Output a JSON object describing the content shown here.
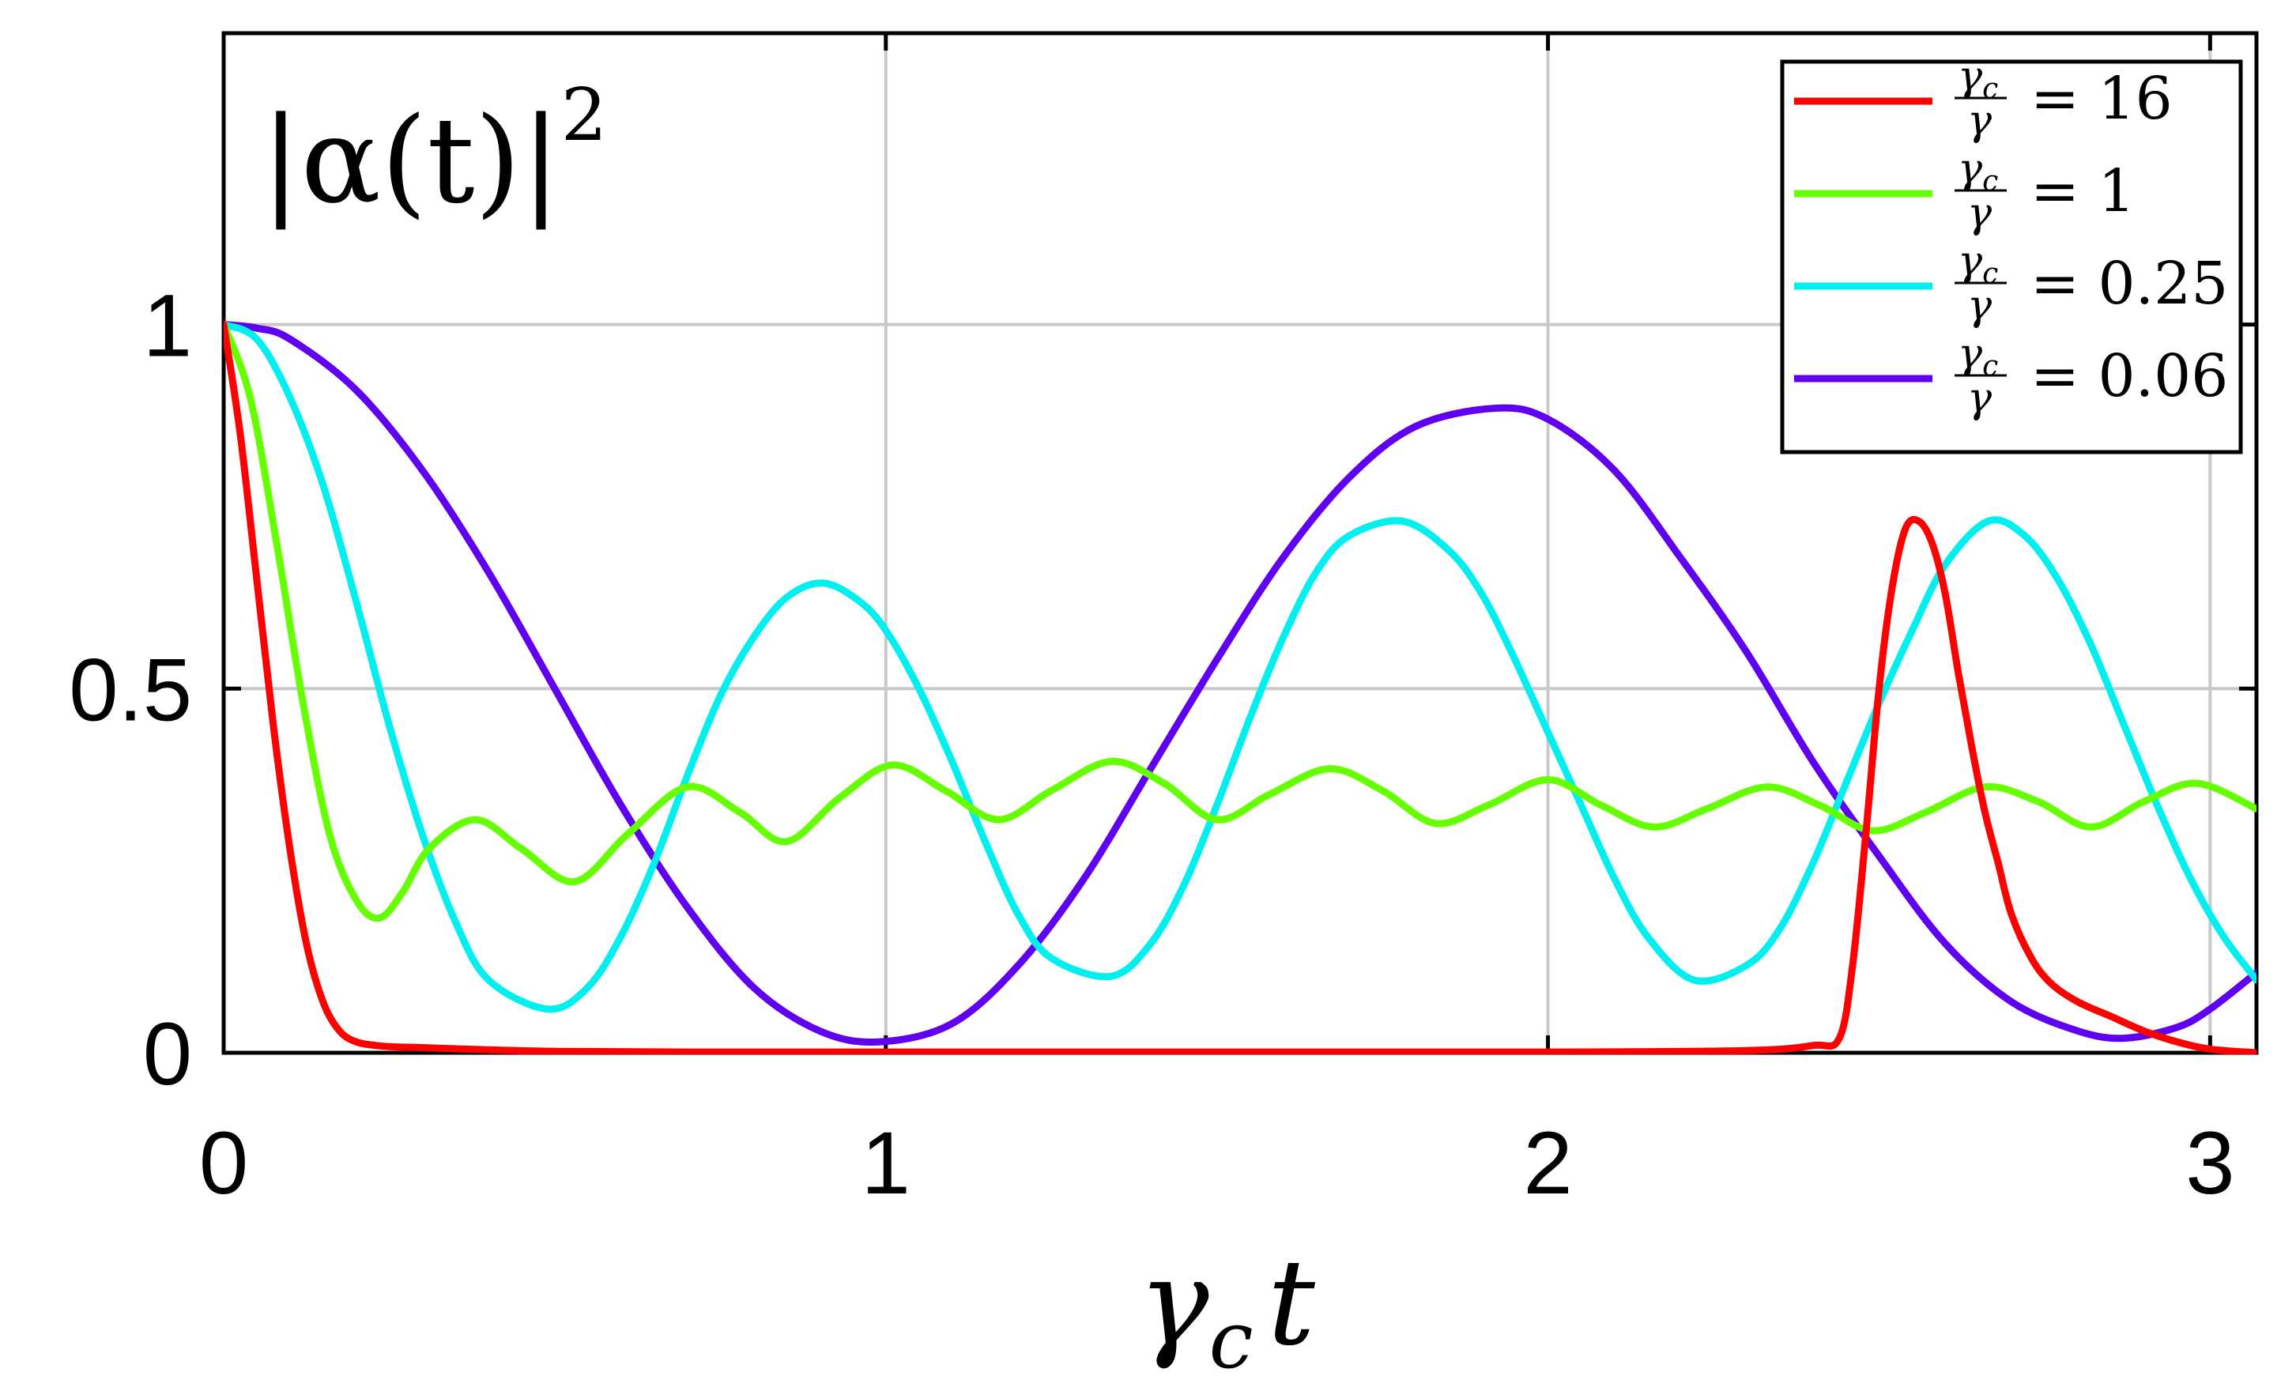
{
  "chart_data": {
    "type": "line",
    "title": "",
    "y_annotation": {
      "base": "|α(t)|",
      "exponent": "2"
    },
    "xlabel": {
      "symbol": "γ",
      "subscript": "c",
      "suffix": "t"
    },
    "ylabel": "",
    "xlim": [
      0,
      3.07
    ],
    "ylim": [
      0,
      1.4
    ],
    "xticks": [
      0,
      1,
      2,
      3
    ],
    "xtick_labels": [
      "0",
      "1",
      "2",
      "3"
    ],
    "yticks": [
      0,
      0.5,
      1
    ],
    "ytick_labels": [
      "0",
      "0.5",
      "1"
    ],
    "grid": true,
    "legend_position": "top-right",
    "series": [
      {
        "name": "γc/γ = 16",
        "legend": {
          "num": "γ",
          "num_sub": "c",
          "den": "γ",
          "rhs": "= 16"
        },
        "color": "#ff0000",
        "x": [
          0,
          0.025,
          0.05,
          0.075,
          0.1,
          0.125,
          0.15,
          0.175,
          0.2,
          0.23,
          0.26,
          0.3,
          0.4,
          0.5,
          0.7,
          1.0,
          1.5,
          2.0,
          2.3,
          2.4,
          2.44,
          2.46,
          2.48,
          2.5,
          2.52,
          2.54,
          2.56,
          2.58,
          2.6,
          2.62,
          2.64,
          2.66,
          2.68,
          2.7,
          2.73,
          2.76,
          2.8,
          2.85,
          2.9,
          2.95,
          3.0,
          3.07
        ],
        "y": [
          1.0,
          0.85,
          0.65,
          0.45,
          0.28,
          0.15,
          0.07,
          0.03,
          0.015,
          0.01,
          0.008,
          0.007,
          0.004,
          0.002,
          0.001,
          0.001,
          0.001,
          0.001,
          0.003,
          0.01,
          0.02,
          0.12,
          0.3,
          0.5,
          0.64,
          0.72,
          0.73,
          0.7,
          0.63,
          0.52,
          0.42,
          0.33,
          0.26,
          0.19,
          0.13,
          0.095,
          0.07,
          0.05,
          0.03,
          0.015,
          0.005,
          0.0
        ]
      },
      {
        "name": "γc/γ = 1",
        "legend": {
          "num": "γ",
          "num_sub": "c",
          "den": "γ",
          "rhs": "= 1"
        },
        "color": "#66ff00",
        "x": [
          0,
          0.04,
          0.08,
          0.12,
          0.16,
          0.2,
          0.235,
          0.27,
          0.31,
          0.38,
          0.45,
          0.53,
          0.61,
          0.7,
          0.78,
          0.85,
          0.93,
          1.01,
          1.09,
          1.17,
          1.25,
          1.34,
          1.42,
          1.5,
          1.58,
          1.67,
          1.75,
          1.83,
          1.91,
          2.0,
          2.08,
          2.16,
          2.24,
          2.33,
          2.41,
          2.49,
          2.57,
          2.66,
          2.74,
          2.82,
          2.9,
          2.98,
          3.07
        ],
        "y": [
          1.0,
          0.9,
          0.7,
          0.48,
          0.3,
          0.21,
          0.185,
          0.22,
          0.28,
          0.32,
          0.28,
          0.235,
          0.3,
          0.365,
          0.33,
          0.29,
          0.35,
          0.395,
          0.36,
          0.32,
          0.36,
          0.4,
          0.37,
          0.32,
          0.355,
          0.39,
          0.36,
          0.315,
          0.34,
          0.375,
          0.34,
          0.31,
          0.335,
          0.365,
          0.34,
          0.305,
          0.33,
          0.365,
          0.345,
          0.31,
          0.345,
          0.37,
          0.335
        ]
      },
      {
        "name": "γc/γ = 0.25",
        "legend": {
          "num": "γ",
          "num_sub": "c",
          "den": "γ",
          "rhs": "= 0.25"
        },
        "color": "#00f0f0",
        "x": [
          0,
          0.05,
          0.1,
          0.15,
          0.2,
          0.25,
          0.3,
          0.35,
          0.4,
          0.49,
          0.55,
          0.6,
          0.65,
          0.7,
          0.75,
          0.8,
          0.85,
          0.905,
          0.96,
          1.0,
          1.05,
          1.1,
          1.15,
          1.2,
          1.25,
          1.34,
          1.4,
          1.45,
          1.5,
          1.55,
          1.6,
          1.65,
          1.7,
          1.78,
          1.85,
          1.9,
          1.95,
          2.0,
          2.05,
          2.1,
          2.15,
          2.22,
          2.3,
          2.35,
          2.4,
          2.45,
          2.5,
          2.55,
          2.6,
          2.665,
          2.72,
          2.77,
          2.82,
          2.87,
          2.92,
          2.97,
          3.02,
          3.07
        ],
        "y": [
          1.0,
          0.98,
          0.9,
          0.78,
          0.62,
          0.45,
          0.3,
          0.18,
          0.1,
          0.06,
          0.09,
          0.16,
          0.26,
          0.38,
          0.49,
          0.57,
          0.625,
          0.645,
          0.62,
          0.58,
          0.5,
          0.4,
          0.29,
          0.19,
          0.13,
          0.105,
          0.15,
          0.23,
          0.34,
          0.46,
          0.57,
          0.66,
          0.71,
          0.73,
          0.69,
          0.63,
          0.54,
          0.44,
          0.34,
          0.24,
          0.16,
          0.1,
          0.12,
          0.17,
          0.26,
          0.37,
          0.48,
          0.58,
          0.67,
          0.73,
          0.71,
          0.65,
          0.56,
          0.45,
          0.34,
          0.24,
          0.16,
          0.1
        ]
      },
      {
        "name": "γc/γ = 0.06",
        "legend": {
          "num": "γ",
          "num_sub": "c",
          "den": "γ",
          "rhs": "= 0.06"
        },
        "color": "#6000f0",
        "x": [
          0,
          0.05,
          0.1,
          0.2,
          0.3,
          0.4,
          0.5,
          0.6,
          0.7,
          0.8,
          0.9,
          0.99,
          1.1,
          1.2,
          1.3,
          1.4,
          1.5,
          1.6,
          1.7,
          1.8,
          1.92,
          2.0,
          2.1,
          2.2,
          2.3,
          2.4,
          2.5,
          2.6,
          2.7,
          2.8,
          2.87,
          2.95,
          3.0,
          3.07
        ],
        "y": [
          1.0,
          0.995,
          0.98,
          0.91,
          0.8,
          0.66,
          0.5,
          0.34,
          0.2,
          0.09,
          0.03,
          0.015,
          0.04,
          0.12,
          0.24,
          0.39,
          0.54,
          0.68,
          0.79,
          0.86,
          0.885,
          0.87,
          0.8,
          0.68,
          0.55,
          0.4,
          0.27,
          0.15,
          0.07,
          0.03,
          0.02,
          0.035,
          0.06,
          0.11
        ]
      }
    ]
  }
}
